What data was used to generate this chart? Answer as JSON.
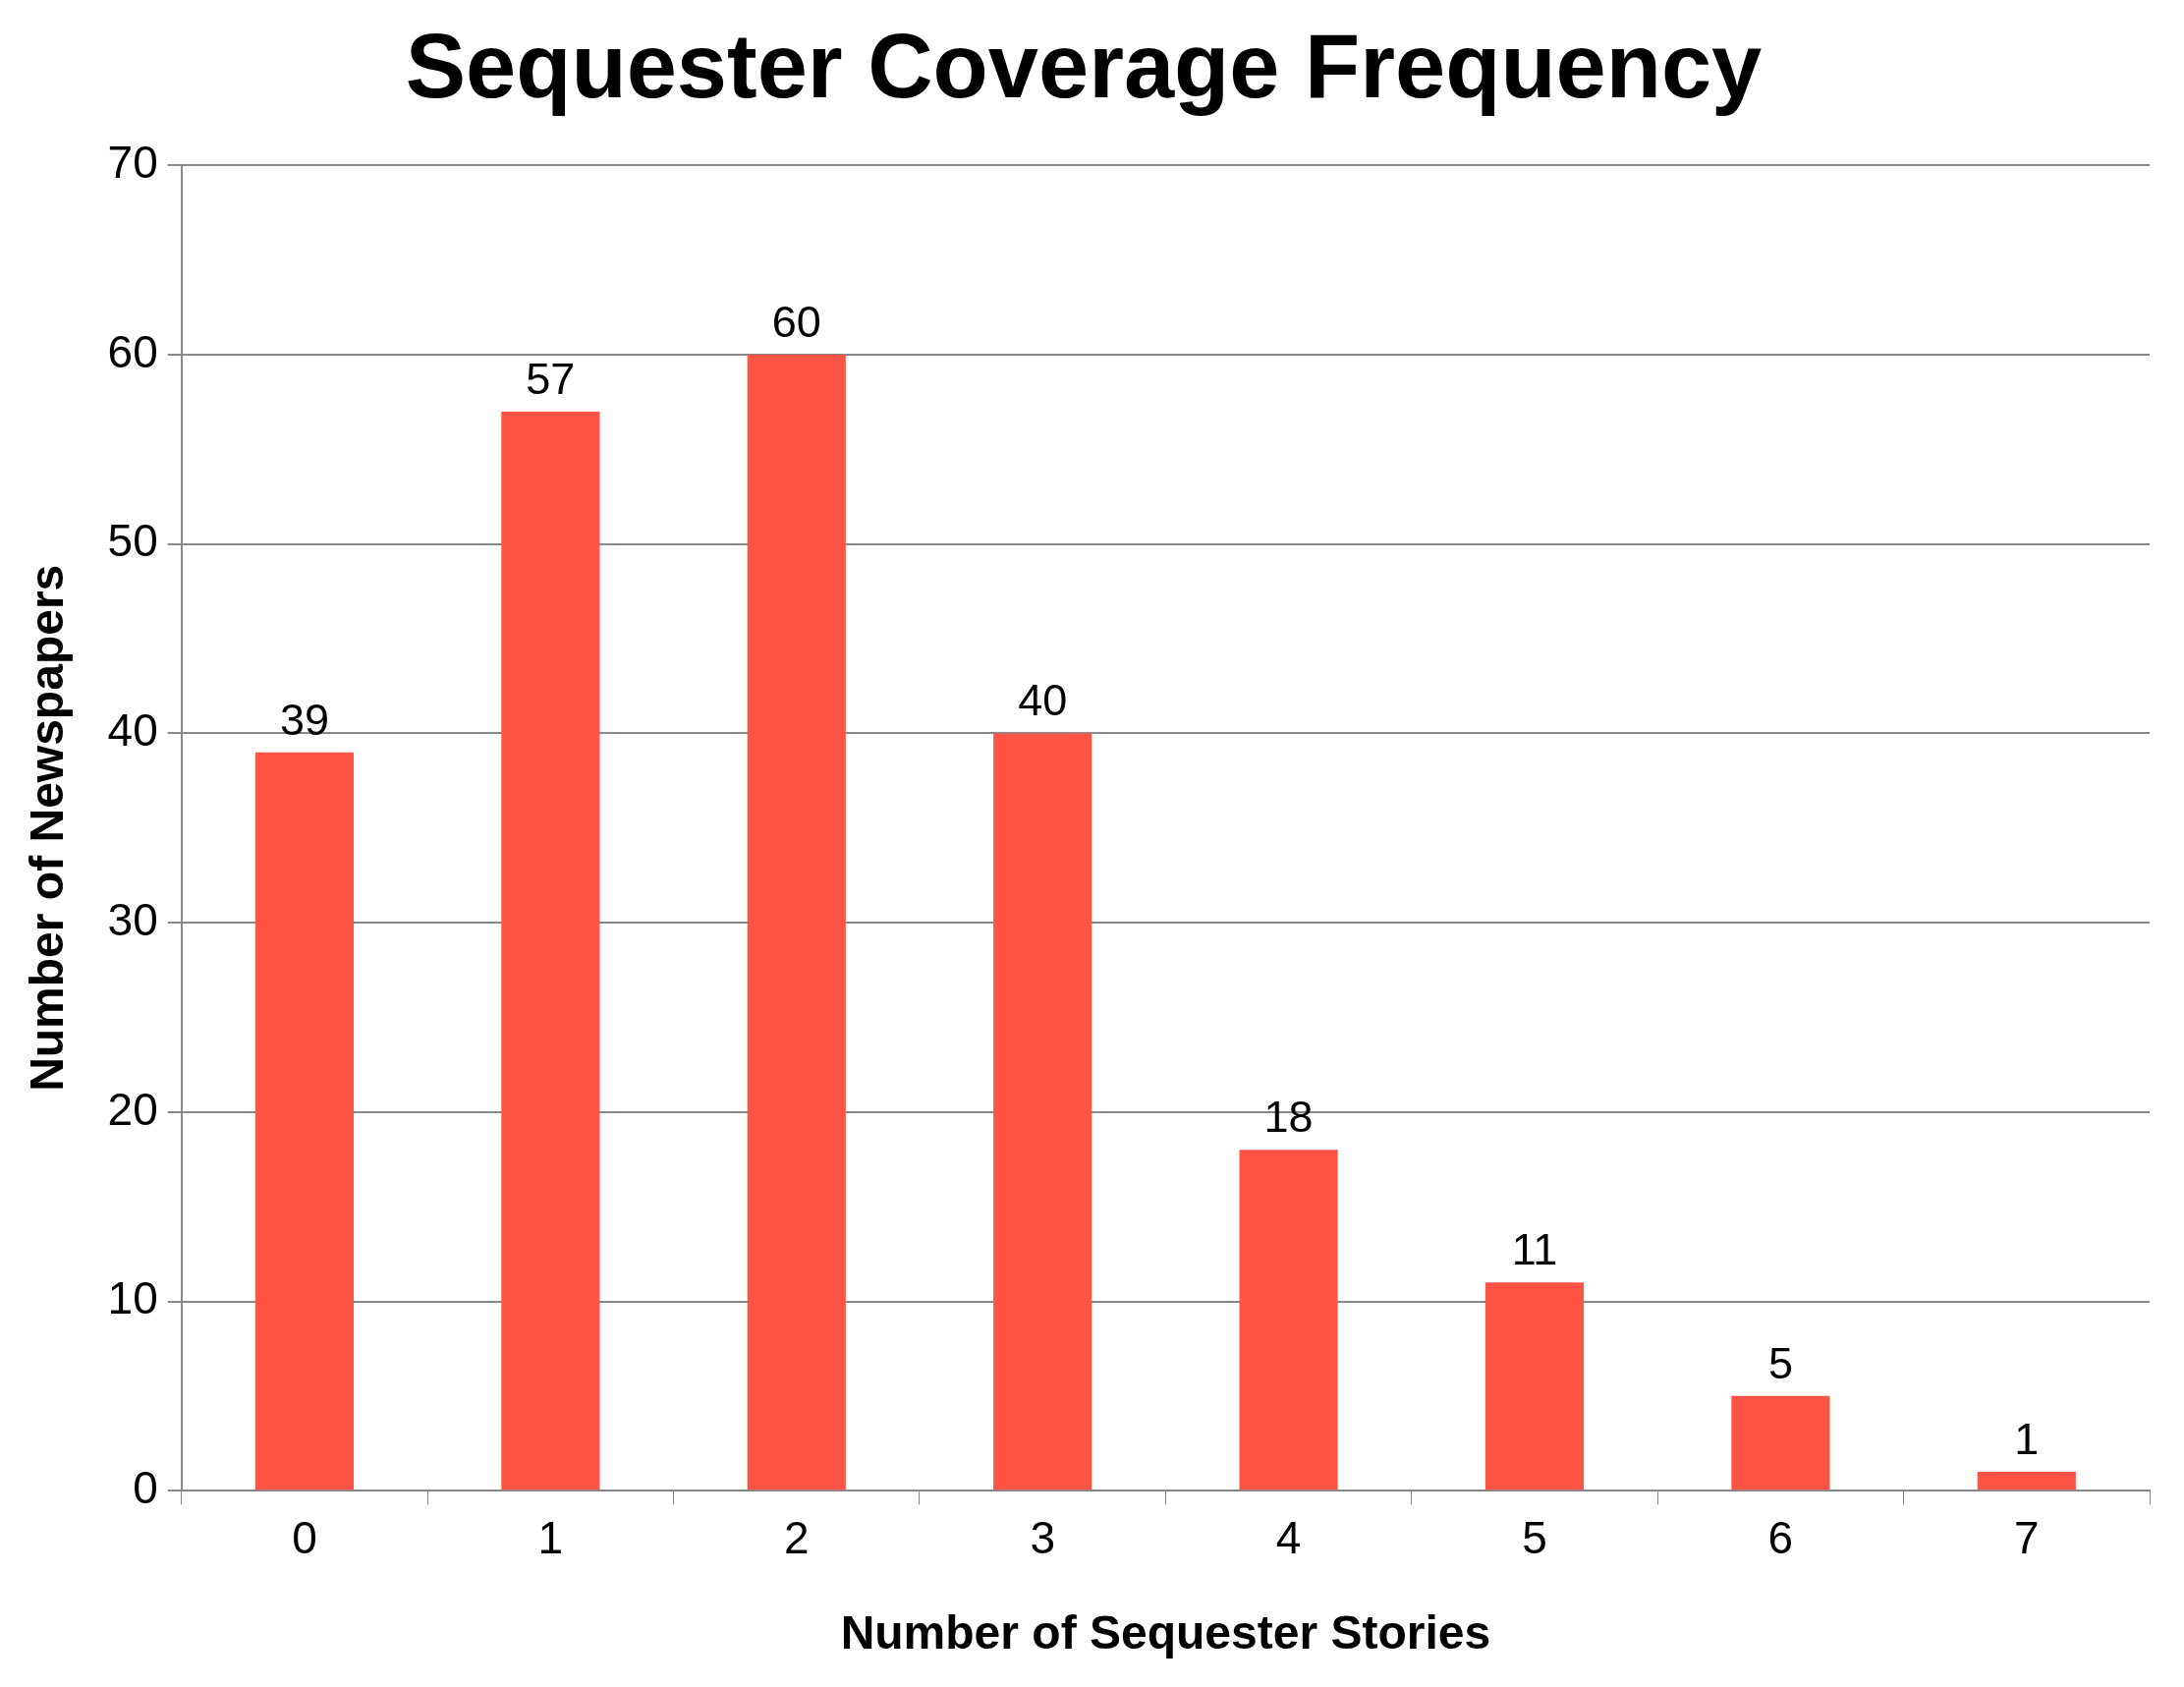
{
  "chart_data": {
    "type": "bar",
    "title": "Sequester Coverage Frequency",
    "xlabel": "Number of Sequester Stories",
    "ylabel": "Number of Newspapers",
    "categories": [
      "0",
      "1",
      "2",
      "3",
      "4",
      "5",
      "6",
      "7"
    ],
    "values": [
      39,
      57,
      60,
      40,
      18,
      11,
      5,
      1
    ],
    "color": "#fe5446",
    "ylim": [
      0,
      70
    ],
    "yticks": [
      0,
      10,
      20,
      30,
      40,
      50,
      60,
      70
    ],
    "grid": "y",
    "data_labels": true,
    "legend": false
  }
}
